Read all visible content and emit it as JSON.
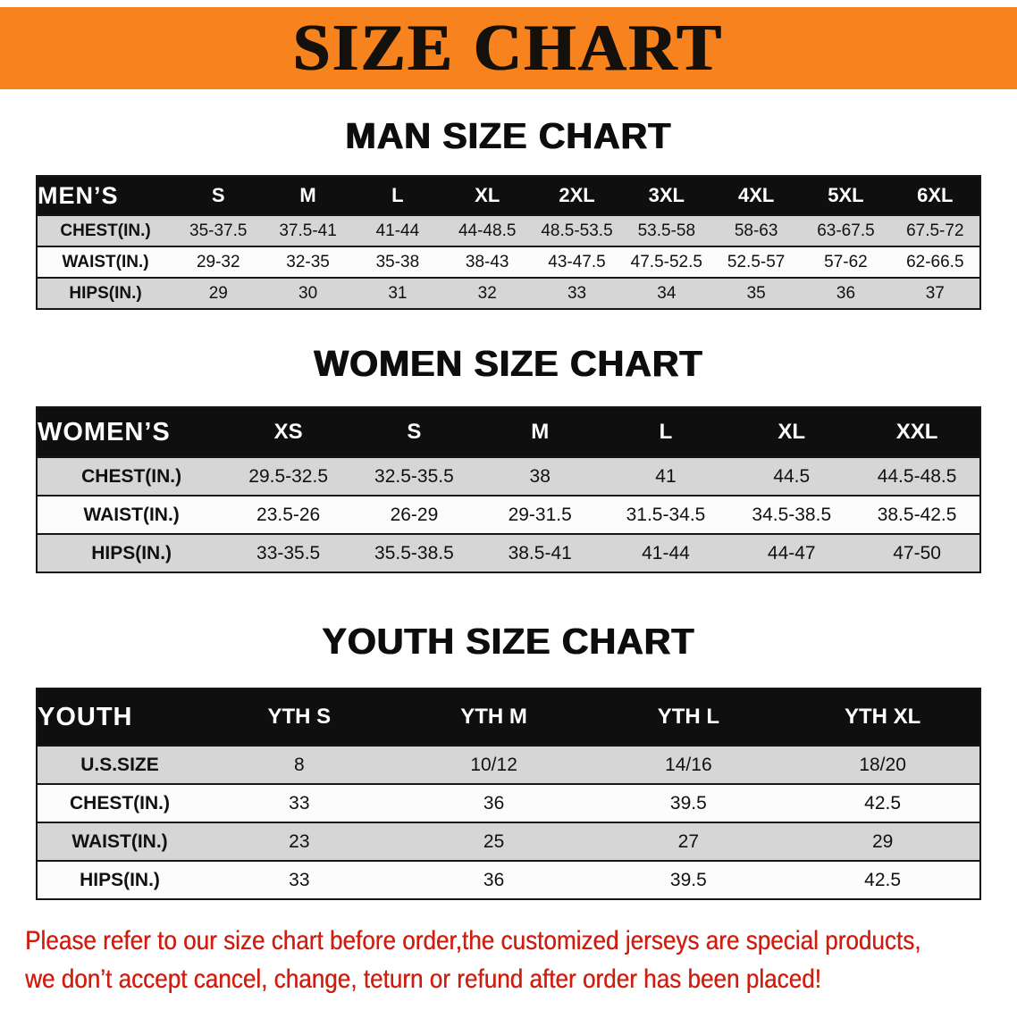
{
  "banner": {
    "title": "SIZE CHART",
    "bg_color": "#f6831d",
    "text_color": "#14100c"
  },
  "sections": {
    "men": {
      "heading": "MAN SIZE CHART",
      "label": "MEN’S",
      "sizes": [
        "S",
        "M",
        "L",
        "XL",
        "2XL",
        "3XL",
        "4XL",
        "5XL",
        "6XL"
      ],
      "rows": [
        {
          "label": "CHEST(IN.)",
          "values": [
            "35-37.5",
            "37.5-41",
            "41-44",
            "44-48.5",
            "48.5-53.5",
            "53.5-58",
            "58-63",
            "63-67.5",
            "67.5-72"
          ]
        },
        {
          "label": "WAIST(IN.)",
          "values": [
            "29-32",
            "32-35",
            "35-38",
            "38-43",
            "43-47.5",
            "47.5-52.5",
            "52.5-57",
            "57-62",
            "62-66.5"
          ]
        },
        {
          "label": "HIPS(IN.)",
          "values": [
            "29",
            "30",
            "31",
            "32",
            "33",
            "34",
            "35",
            "36",
            "37"
          ]
        }
      ]
    },
    "women": {
      "heading": "WOMEN SIZE CHART",
      "label": "WOMEN’S",
      "sizes": [
        "XS",
        "S",
        "M",
        "L",
        "XL",
        "XXL"
      ],
      "rows": [
        {
          "label": "CHEST(IN.)",
          "values": [
            "29.5-32.5",
            "32.5-35.5",
            "38",
            "41",
            "44.5",
            "44.5-48.5"
          ]
        },
        {
          "label": "WAIST(IN.)",
          "values": [
            "23.5-26",
            "26-29",
            "29-31.5",
            "31.5-34.5",
            "34.5-38.5",
            "38.5-42.5"
          ]
        },
        {
          "label": "HIPS(IN.)",
          "values": [
            "33-35.5",
            "35.5-38.5",
            "38.5-41",
            "41-44",
            "44-47",
            "47-50"
          ]
        }
      ]
    },
    "youth": {
      "heading": "YOUTH SIZE CHART",
      "label": "YOUTH",
      "sizes": [
        "YTH S",
        "YTH M",
        "YTH L",
        "YTH XL"
      ],
      "rows": [
        {
          "label": "U.S.SIZE",
          "values": [
            "8",
            "10/12",
            "14/16",
            "18/20"
          ]
        },
        {
          "label": "CHEST(IN.)",
          "values": [
            "33",
            "36",
            "39.5",
            "42.5"
          ]
        },
        {
          "label": "WAIST(IN.)",
          "values": [
            "23",
            "25",
            "27",
            "29"
          ]
        },
        {
          "label": "HIPS(IN.)",
          "values": [
            "33",
            "36",
            "39.5",
            "42.5"
          ]
        }
      ]
    }
  },
  "disclaimer": {
    "line1": "Please refer to our size chart before order,the customized jerseys are special products,",
    "line2": "we don’t accept cancel, change, teturn or refund after order has been placed!",
    "text_color": "#cf1d10"
  },
  "table_colors": {
    "header_bar": "#0f0f0f",
    "row_gray": "#d6d6d6",
    "row_white": "#fcfcfc",
    "border": "#161616"
  }
}
